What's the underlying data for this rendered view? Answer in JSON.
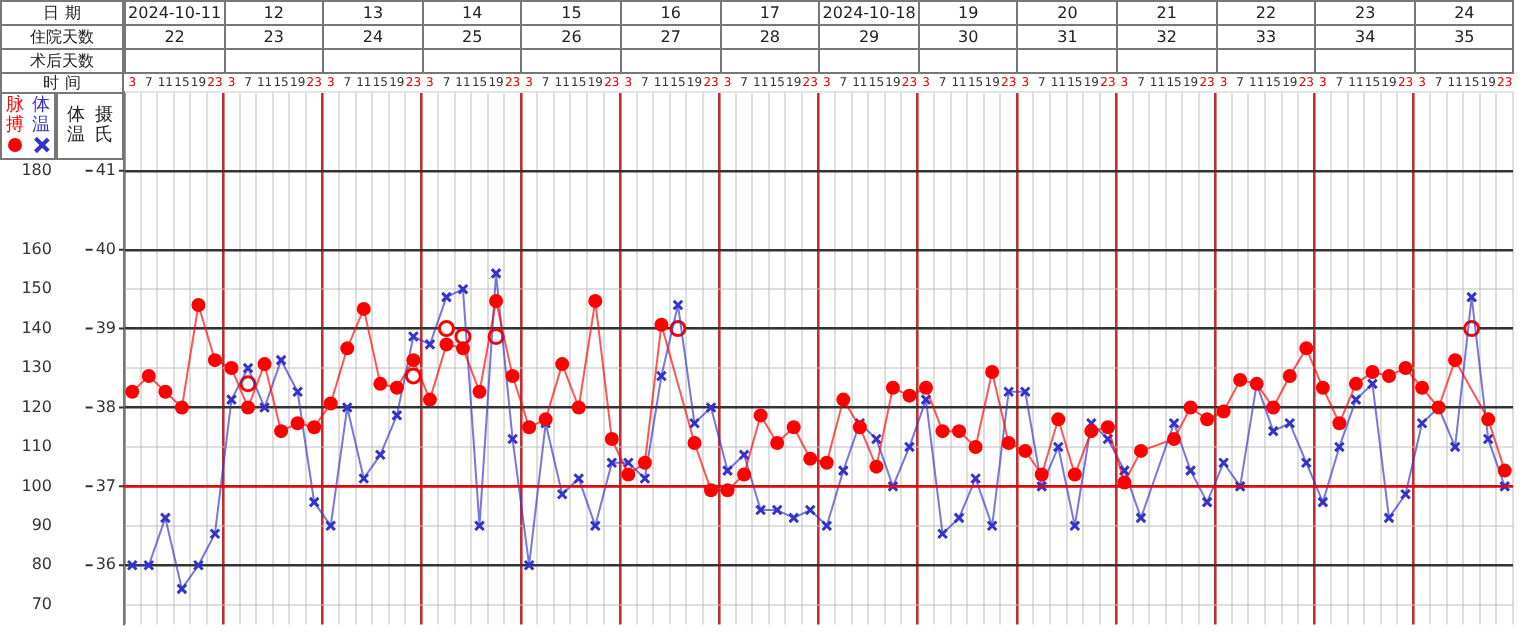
{
  "chart_data": {
    "type": "line",
    "annotations": [
      "日 期",
      "住院天数",
      "术后天数",
      "2024-10-11",
      "12",
      "13",
      "14",
      "15",
      "16",
      "17",
      "2024-10-18",
      "19",
      "20",
      "21",
      "22",
      "23",
      "24",
      "22",
      "23",
      "24",
      "25",
      "26",
      "27",
      "28",
      "29",
      "30",
      "31",
      "32",
      "33",
      "34",
      "35"
    ],
    "xlabel": "时 间",
    "y2label": "体温摄氏",
    "categories": [
      "3",
      "7",
      "11",
      "15",
      "19",
      "23",
      "3",
      "7",
      "11",
      "15",
      "19",
      "23",
      "3",
      "7",
      "11",
      "15",
      "19",
      "23",
      "3",
      "7",
      "11",
      "15",
      "19",
      "23",
      "3",
      "7",
      "11",
      "15",
      "19",
      "23",
      "3",
      "7",
      "11",
      "15",
      "19",
      "23",
      "3",
      "7",
      "11",
      "15",
      "19",
      "23",
      "3",
      "7",
      "11",
      "15",
      "19",
      "23",
      "3",
      "7",
      "11",
      "15",
      "19",
      "23",
      "3",
      "7",
      "11",
      "15",
      "19",
      "23",
      "3",
      "7",
      "11",
      "15",
      "19",
      "23",
      "3",
      "7",
      "11",
      "15",
      "19",
      "23",
      "3",
      "7",
      "11",
      "15",
      "19",
      "23",
      "3",
      "7",
      "11",
      "15",
      "19",
      "23"
    ],
    "series": [
      {
        "name": "脉搏",
        "color": "#ff0000",
        "marker": "circle",
        "values": [
          124,
          128,
          124,
          120,
          146,
          132,
          130,
          120,
          131,
          114,
          116,
          115,
          121,
          135,
          145,
          126,
          125,
          132,
          122,
          136,
          135,
          124,
          147,
          128,
          115,
          117,
          131,
          120,
          147,
          112,
          103,
          106,
          141,
          null,
          111,
          99,
          99,
          103,
          118,
          111,
          115,
          107,
          106,
          122,
          115,
          105,
          125,
          123,
          125,
          114,
          114,
          110,
          129,
          111,
          109,
          103,
          117,
          103,
          114,
          115,
          101,
          109,
          null,
          112,
          120,
          117,
          119,
          127,
          126,
          120,
          128,
          135,
          125,
          116,
          126,
          129,
          128,
          130,
          125,
          120,
          132,
          null,
          117,
          104
        ]
      },
      {
        "name": "体温",
        "color": "#3333cc",
        "marker": "cross",
        "axis": "y2",
        "values": [
          36.0,
          36.0,
          36.6,
          35.7,
          36.0,
          36.4,
          38.1,
          38.5,
          38.0,
          38.6,
          38.2,
          36.8,
          36.5,
          38.0,
          37.1,
          37.4,
          37.9,
          38.9,
          38.8,
          39.4,
          39.5,
          36.5,
          39.7,
          37.6,
          36.0,
          37.8,
          36.9,
          37.1,
          36.5,
          37.3,
          37.3,
          37.1,
          38.4,
          39.3,
          37.8,
          38.0,
          37.2,
          37.4,
          36.7,
          36.7,
          36.6,
          36.7,
          36.5,
          37.2,
          37.8,
          37.6,
          37.0,
          37.5,
          38.1,
          36.4,
          36.6,
          37.1,
          36.5,
          38.2,
          38.2,
          37.0,
          37.5,
          36.5,
          37.8,
          37.6,
          37.2,
          36.6,
          null,
          37.8,
          37.2,
          36.8,
          37.3,
          37.0,
          38.3,
          37.7,
          37.8,
          37.3,
          36.8,
          37.5,
          38.1,
          38.3,
          36.6,
          36.9,
          37.8,
          38.0,
          37.5,
          39.4,
          37.6,
          37.0
        ]
      },
      {
        "type": "scatter",
        "color": "#ff0000",
        "marker": "circle",
        "axis": "y2",
        "values": [
          null,
          null,
          null,
          null,
          null,
          null,
          null,
          38.3,
          null,
          null,
          null,
          null,
          null,
          null,
          null,
          null,
          null,
          38.4,
          null,
          39.0,
          38.9,
          null,
          38.9,
          null,
          null,
          null,
          null,
          null,
          null,
          null,
          null,
          null,
          null,
          39.0,
          null,
          null,
          null,
          null,
          null,
          null,
          null,
          null,
          null,
          null,
          null,
          null,
          null,
          null,
          null,
          null,
          null,
          null,
          null,
          null,
          null,
          null,
          null,
          null,
          null,
          null,
          null,
          null,
          null,
          null,
          null,
          null,
          null,
          null,
          null,
          null,
          null,
          null,
          null,
          null,
          null,
          null,
          null,
          null,
          null,
          null,
          null,
          39.0,
          null,
          null
        ]
      }
    ],
    "ylim": [
      65,
      200
    ],
    "yticks": [
      70,
      80,
      90,
      100,
      110,
      120,
      130,
      140,
      150,
      160,
      180
    ],
    "y2lim": [
      35.25,
      42
    ],
    "y2ticks": [
      36,
      37,
      38,
      39,
      40,
      41
    ],
    "ref_lines": [
      {
        "axis": "y2",
        "value": 37,
        "color": "#ff0000"
      }
    ],
    "grid": true,
    "legend": "top left"
  }
}
